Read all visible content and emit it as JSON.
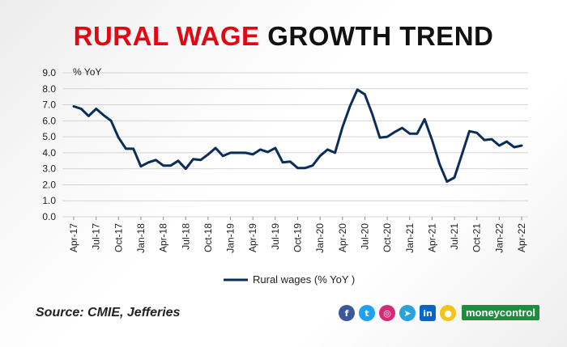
{
  "header": {
    "title_red": "RURAL WAGE",
    "title_dark": "GROWTH TREND"
  },
  "footer": {
    "source": "Source: CMIE, Jefferies",
    "brand": "moneycontrol"
  },
  "social_icons": [
    "facebook-icon",
    "twitter-icon",
    "instagram-icon",
    "telegram-icon",
    "linkedin-icon",
    "koo-icon"
  ],
  "colors": {
    "line": "#0b2d5a",
    "title_red": "#e30613",
    "brand_green": "#1e8e3e"
  },
  "chart_data": {
    "type": "line",
    "ylabel": "% YoY",
    "ylim": [
      0,
      9
    ],
    "yticks": [
      "0.0",
      "1.0",
      "2.0",
      "3.0",
      "4.0",
      "5.0",
      "6.0",
      "7.0",
      "8.0",
      "9.0"
    ],
    "xtick_labels": [
      "Apr-17",
      "Jul-17",
      "Oct-17",
      "Jan-18",
      "Apr-18",
      "Jul-18",
      "Oct-18",
      "Jan-19",
      "Apr-19",
      "Jul-19",
      "Oct-19",
      "Jan-20",
      "Apr-20",
      "Jul-20",
      "Oct-20",
      "Jan-21",
      "Apr-21",
      "Jul-21",
      "Oct-21",
      "Jan-22",
      "Apr-22"
    ],
    "grid": true,
    "legend": "bottom-center",
    "series": [
      {
        "name": "Rural wages (% YoY )",
        "values": [
          6.9,
          6.75,
          6.3,
          6.75,
          6.35,
          6.0,
          4.95,
          4.25,
          4.25,
          3.15,
          3.4,
          3.55,
          3.2,
          3.2,
          3.5,
          3.0,
          3.6,
          3.55,
          3.9,
          4.3,
          3.8,
          4.0,
          4.0,
          4.0,
          3.9,
          4.2,
          4.05,
          4.3,
          3.4,
          3.45,
          3.05,
          3.05,
          3.2,
          3.8,
          4.2,
          4.0,
          5.6,
          6.9,
          7.95,
          7.65,
          6.4,
          4.95,
          5.0,
          5.3,
          5.55,
          5.2,
          5.2,
          6.1,
          4.8,
          3.3,
          2.2,
          2.45,
          3.9,
          5.35,
          5.25,
          4.8,
          4.85,
          4.45,
          4.7,
          4.35,
          4.45
        ]
      }
    ]
  }
}
